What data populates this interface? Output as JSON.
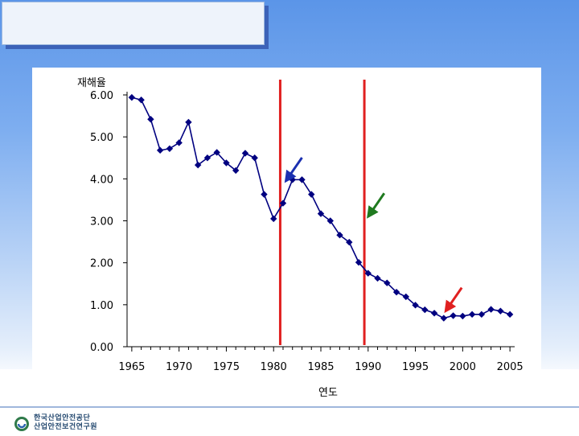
{
  "header": {
    "title": ""
  },
  "chart_data": {
    "type": "line",
    "ylabel": "재해율",
    "xlabel": "연도",
    "ylim": [
      0,
      6
    ],
    "xlim": [
      1964.5,
      2005.5
    ],
    "y_ticks": [
      "0.00",
      "1.00",
      "2.00",
      "3.00",
      "4.00",
      "5.00",
      "6.00"
    ],
    "x_ticks": [
      "1965",
      "1970",
      "1975",
      "1980",
      "1985",
      "1990",
      "1995",
      "2000",
      "2005"
    ],
    "grid": false,
    "legend": "none",
    "series": [
      {
        "color": "#000080",
        "x": [
          1965,
          1966,
          1967,
          1968,
          1969,
          1970,
          1971,
          1972,
          1973,
          1974,
          1975,
          1976,
          1977,
          1978,
          1979,
          1980,
          1981,
          1982,
          1983,
          1984,
          1985,
          1986,
          1987,
          1988,
          1989,
          1990,
          1991,
          1992,
          1993,
          1994,
          1995,
          1996,
          1997,
          1998,
          1999,
          2000,
          2001,
          2002,
          2003,
          2004,
          2005
        ],
        "values": [
          5.94,
          5.88,
          5.42,
          4.68,
          4.72,
          4.86,
          5.35,
          4.33,
          4.5,
          4.63,
          4.38,
          4.2,
          4.61,
          4.5,
          3.63,
          3.05,
          3.42,
          3.98,
          3.98,
          3.63,
          3.17,
          3.0,
          2.66,
          2.49,
          2.01,
          1.75,
          1.63,
          1.52,
          1.3,
          1.19,
          0.99,
          0.88,
          0.8,
          0.68,
          0.74,
          0.73,
          0.77,
          0.77,
          0.89,
          0.85,
          0.77
        ]
      }
    ],
    "reference_lines": [
      {
        "x": 1980.7,
        "color": "#e02020"
      },
      {
        "x": 1989.6,
        "color": "#e02020"
      }
    ],
    "annotations": [
      {
        "type": "arrow",
        "color": "#1a2fb0",
        "to_x": 1981.3,
        "to_y": 3.95
      },
      {
        "type": "arrow",
        "color": "#1f7a1f",
        "to_x": 1990.0,
        "to_y": 3.1
      },
      {
        "type": "arrow",
        "color": "#e02020",
        "to_x": 1998.2,
        "to_y": 0.85
      }
    ]
  },
  "footer": {
    "org_line1": "한국산업안전공단",
    "org_line2": "산업안전보건연구원"
  }
}
